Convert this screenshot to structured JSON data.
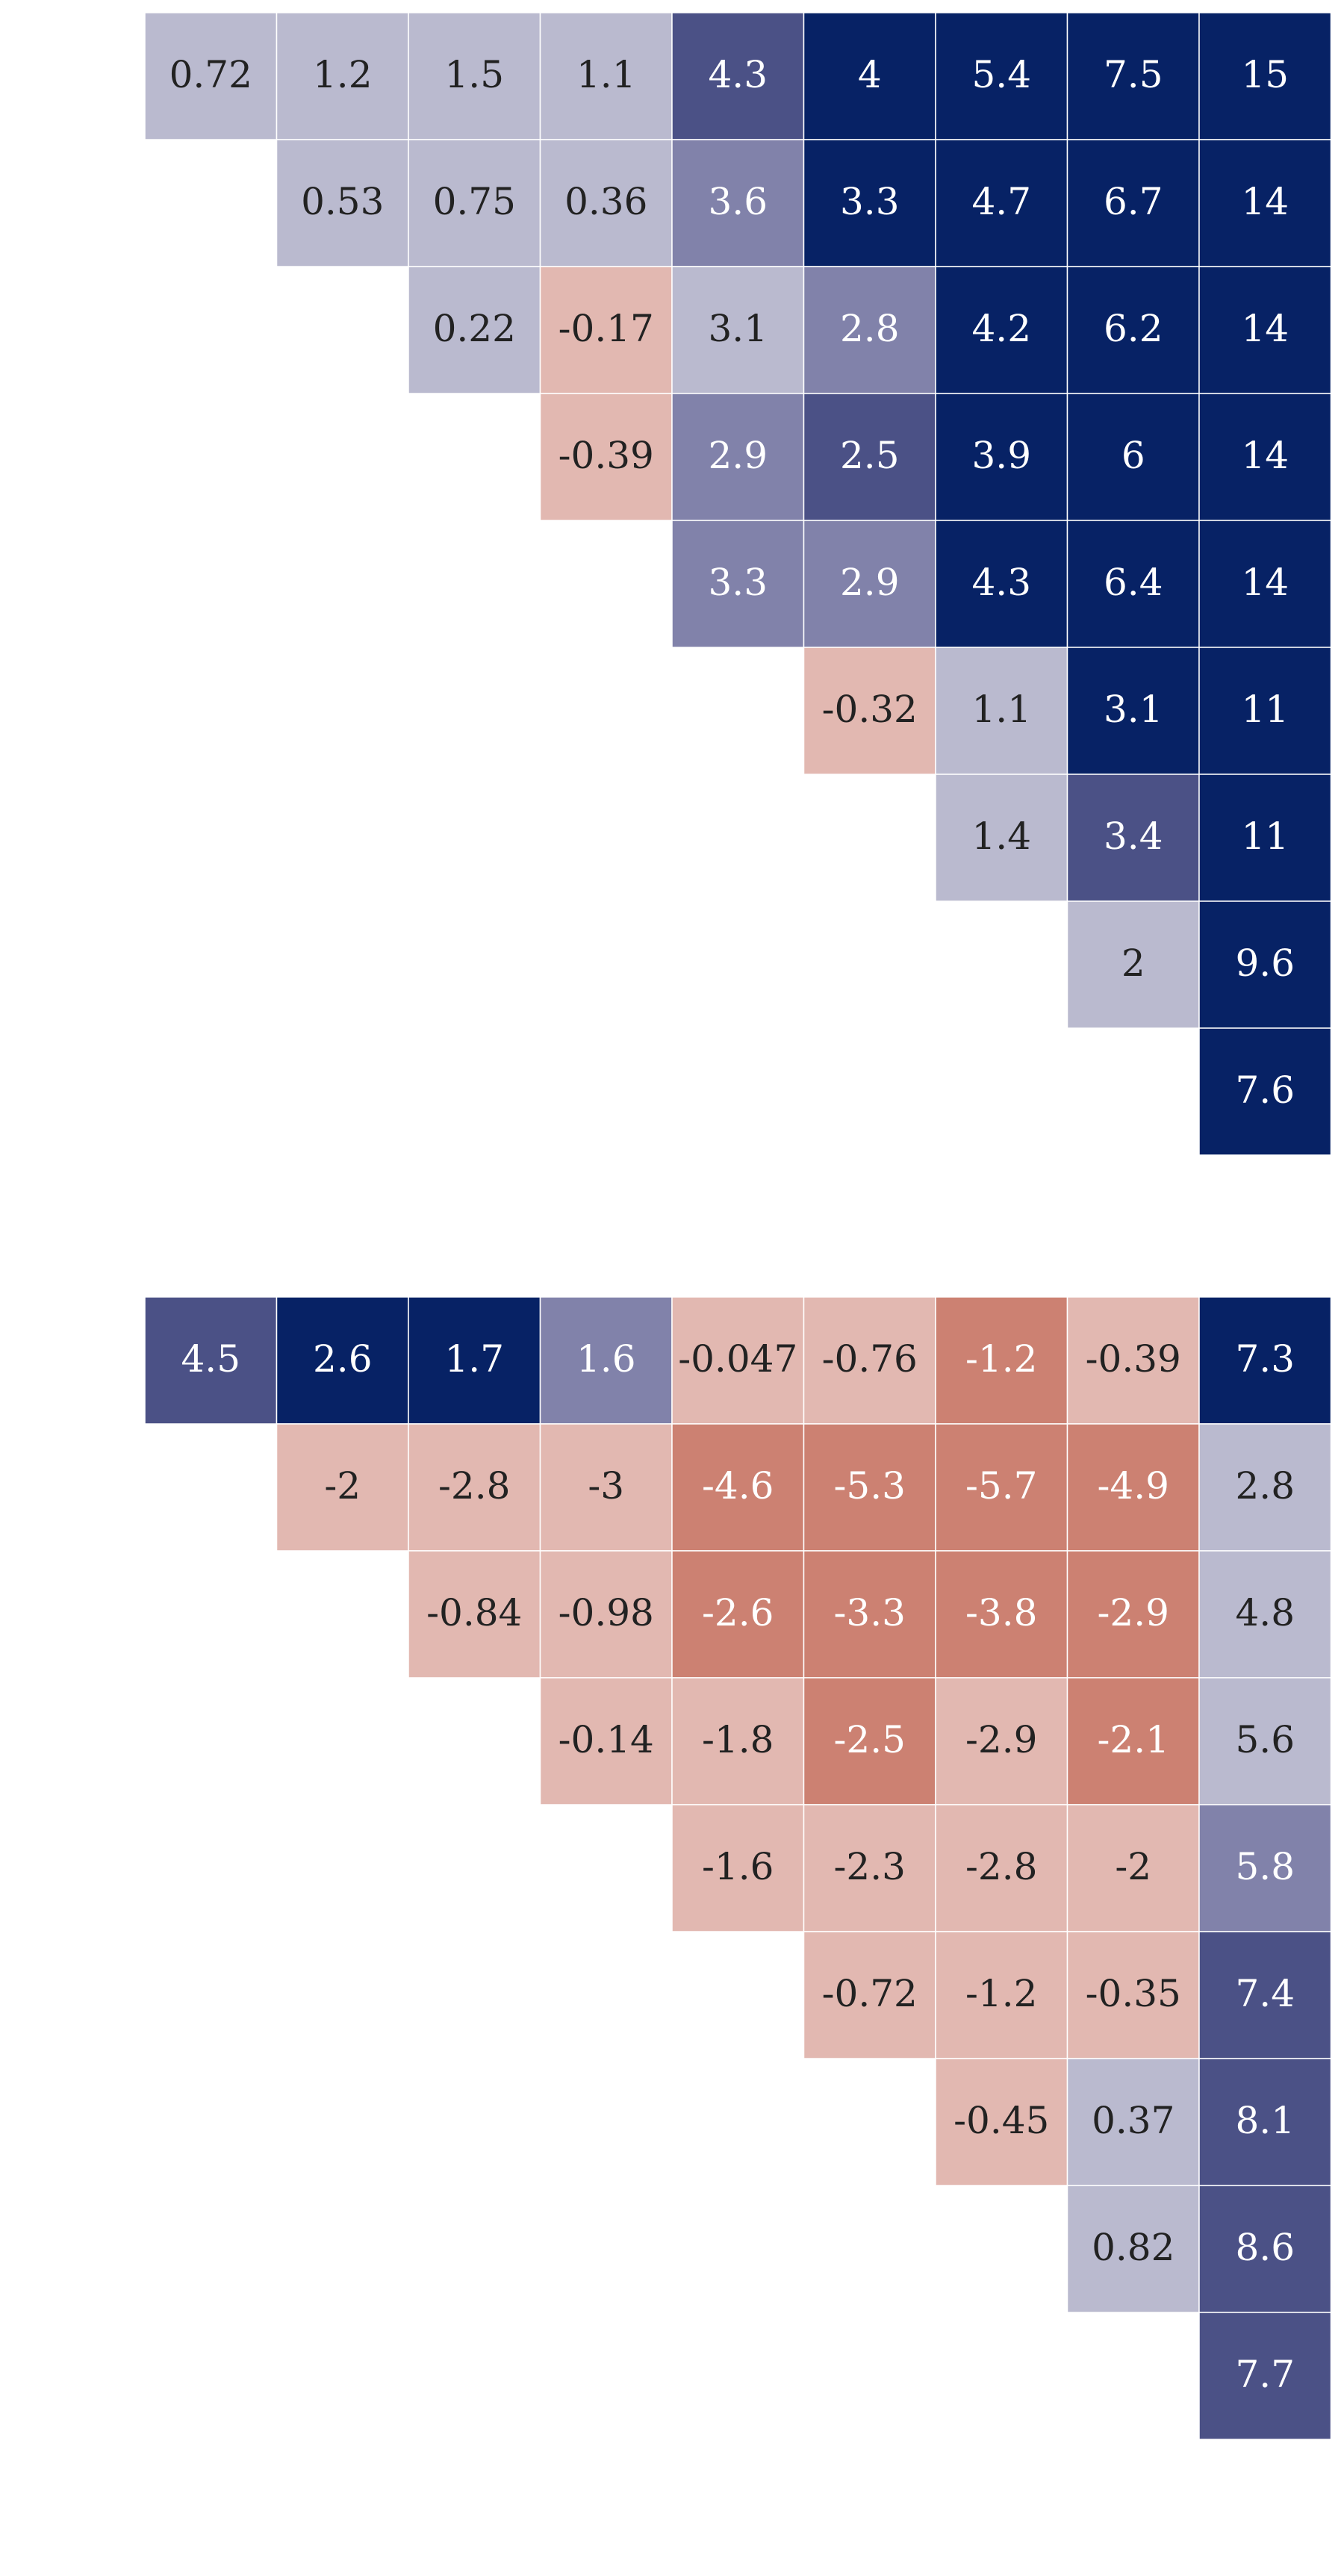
{
  "chart_data": [
    {
      "type": "heatmap",
      "layout": "upper-triangular",
      "rows": 9,
      "cols": 9,
      "values": [
        [
          0.72,
          1.2,
          1.5,
          1.1,
          4.3,
          4,
          5.4,
          7.5,
          15
        ],
        [
          null,
          0.53,
          0.75,
          0.36,
          3.6,
          3.3,
          4.7,
          6.7,
          14
        ],
        [
          null,
          null,
          0.22,
          -0.17,
          3.1,
          2.8,
          4.2,
          6.2,
          14
        ],
        [
          null,
          null,
          null,
          -0.39,
          2.9,
          2.5,
          3.9,
          6,
          14
        ],
        [
          null,
          null,
          null,
          null,
          3.3,
          2.9,
          4.3,
          6.4,
          14
        ],
        [
          null,
          null,
          null,
          null,
          null,
          -0.32,
          1.1,
          3.1,
          11
        ],
        [
          null,
          null,
          null,
          null,
          null,
          null,
          1.4,
          3.4,
          11
        ],
        [
          null,
          null,
          null,
          null,
          null,
          null,
          null,
          2,
          9.6
        ],
        [
          null,
          null,
          null,
          null,
          null,
          null,
          null,
          null,
          7.6
        ]
      ],
      "labels": [
        [
          "0.72",
          "1.2",
          "1.5",
          "1.1",
          "4.3",
          "4",
          "5.4",
          "7.5",
          "15"
        ],
        [
          null,
          "0.53",
          "0.75",
          "0.36",
          "3.6",
          "3.3",
          "4.7",
          "6.7",
          "14"
        ],
        [
          null,
          null,
          "0.22",
          "-0.17",
          "3.1",
          "2.8",
          "4.2",
          "6.2",
          "14"
        ],
        [
          null,
          null,
          null,
          "-0.39",
          "2.9",
          "2.5",
          "3.9",
          "6",
          "14"
        ],
        [
          null,
          null,
          null,
          null,
          "3.3",
          "2.9",
          "4.3",
          "6.4",
          "14"
        ],
        [
          null,
          null,
          null,
          null,
          null,
          "-0.32",
          "1.1",
          "3.1",
          "11"
        ],
        [
          null,
          null,
          null,
          null,
          null,
          null,
          "1.4",
          "3.4",
          "11"
        ],
        [
          null,
          null,
          null,
          null,
          null,
          null,
          null,
          "2",
          "9.6"
        ],
        [
          null,
          null,
          null,
          null,
          null,
          null,
          null,
          null,
          "7.6"
        ]
      ],
      "color_levels": [
        [
          2,
          2,
          2,
          2,
          4,
          5,
          5,
          5,
          5
        ],
        [
          null,
          2,
          2,
          2,
          3,
          5,
          5,
          5,
          5
        ],
        [
          null,
          null,
          2,
          -2,
          2,
          3,
          5,
          5,
          5
        ],
        [
          null,
          null,
          null,
          -2,
          3,
          4,
          5,
          5,
          5
        ],
        [
          null,
          null,
          null,
          null,
          3,
          3,
          5,
          5,
          5
        ],
        [
          null,
          null,
          null,
          null,
          null,
          -2,
          2,
          5,
          5
        ],
        [
          null,
          null,
          null,
          null,
          null,
          null,
          2,
          4,
          5
        ],
        [
          null,
          null,
          null,
          null,
          null,
          null,
          null,
          2,
          5
        ],
        [
          null,
          null,
          null,
          null,
          null,
          null,
          null,
          null,
          5
        ]
      ]
    },
    {
      "type": "heatmap",
      "layout": "upper-triangular",
      "rows": 9,
      "cols": 9,
      "values": [
        [
          4.5,
          2.6,
          1.7,
          1.6,
          -0.047,
          -0.76,
          -1.2,
          -0.39,
          7.3
        ],
        [
          null,
          -2,
          -2.8,
          -3,
          -4.6,
          -5.3,
          -5.7,
          -4.9,
          2.8
        ],
        [
          null,
          null,
          -0.84,
          -0.98,
          -2.6,
          -3.3,
          -3.8,
          -2.9,
          4.8
        ],
        [
          null,
          null,
          null,
          -0.14,
          -1.8,
          -2.5,
          -2.9,
          -2.1,
          5.6
        ],
        [
          null,
          null,
          null,
          null,
          -1.6,
          -2.3,
          -2.8,
          -2,
          5.8
        ],
        [
          null,
          null,
          null,
          null,
          null,
          -0.72,
          -1.2,
          -0.35,
          7.4
        ],
        [
          null,
          null,
          null,
          null,
          null,
          null,
          -0.45,
          0.37,
          8.1
        ],
        [
          null,
          null,
          null,
          null,
          null,
          null,
          null,
          0.82,
          8.6
        ],
        [
          null,
          null,
          null,
          null,
          null,
          null,
          null,
          null,
          7.7
        ]
      ],
      "labels": [
        [
          "4.5",
          "2.6",
          "1.7",
          "1.6",
          "-0.047",
          "-0.76",
          "-1.2",
          "-0.39",
          "7.3"
        ],
        [
          null,
          "-2",
          "-2.8",
          "-3",
          "-4.6",
          "-5.3",
          "-5.7",
          "-4.9",
          "2.8"
        ],
        [
          null,
          null,
          "-0.84",
          "-0.98",
          "-2.6",
          "-3.3",
          "-3.8",
          "-2.9",
          "4.8"
        ],
        [
          null,
          null,
          null,
          "-0.14",
          "-1.8",
          "-2.5",
          "-2.9",
          "-2.1",
          "5.6"
        ],
        [
          null,
          null,
          null,
          null,
          "-1.6",
          "-2.3",
          "-2.8",
          "-2",
          "5.8"
        ],
        [
          null,
          null,
          null,
          null,
          null,
          "-0.72",
          "-1.2",
          "-0.35",
          "7.4"
        ],
        [
          null,
          null,
          null,
          null,
          null,
          null,
          "-0.45",
          "0.37",
          "8.1"
        ],
        [
          null,
          null,
          null,
          null,
          null,
          null,
          null,
          "0.82",
          "8.6"
        ],
        [
          null,
          null,
          null,
          null,
          null,
          null,
          null,
          null,
          "7.7"
        ]
      ],
      "color_levels": [
        [
          4,
          5,
          5,
          3,
          -2,
          -2,
          -3,
          -2,
          5
        ],
        [
          null,
          -2,
          -2,
          -2,
          -3,
          -3,
          -3,
          -3,
          2
        ],
        [
          null,
          null,
          -2,
          -2,
          -3,
          -3,
          -3,
          -3,
          2
        ],
        [
          null,
          null,
          null,
          -2,
          -2,
          -3,
          -2,
          -3,
          2
        ],
        [
          null,
          null,
          null,
          null,
          -2,
          -2,
          -2,
          -2,
          3
        ],
        [
          null,
          null,
          null,
          null,
          null,
          -2,
          -2,
          -2,
          4
        ],
        [
          null,
          null,
          null,
          null,
          null,
          null,
          -2,
          2,
          4
        ],
        [
          null,
          null,
          null,
          null,
          null,
          null,
          null,
          2,
          4
        ],
        [
          null,
          null,
          null,
          null,
          null,
          null,
          null,
          null,
          4
        ]
      ]
    }
  ],
  "palette": {
    "5": "#072265",
    "4": "#4b5186",
    "3": "#8182aa",
    "2": "#babacf",
    "-2": "#e2b8b1",
    "-3": "#cc8172"
  },
  "text_colors": {
    "light": "#ffffff",
    "dark": "#222222"
  },
  "gridline_color": "#ffffff"
}
